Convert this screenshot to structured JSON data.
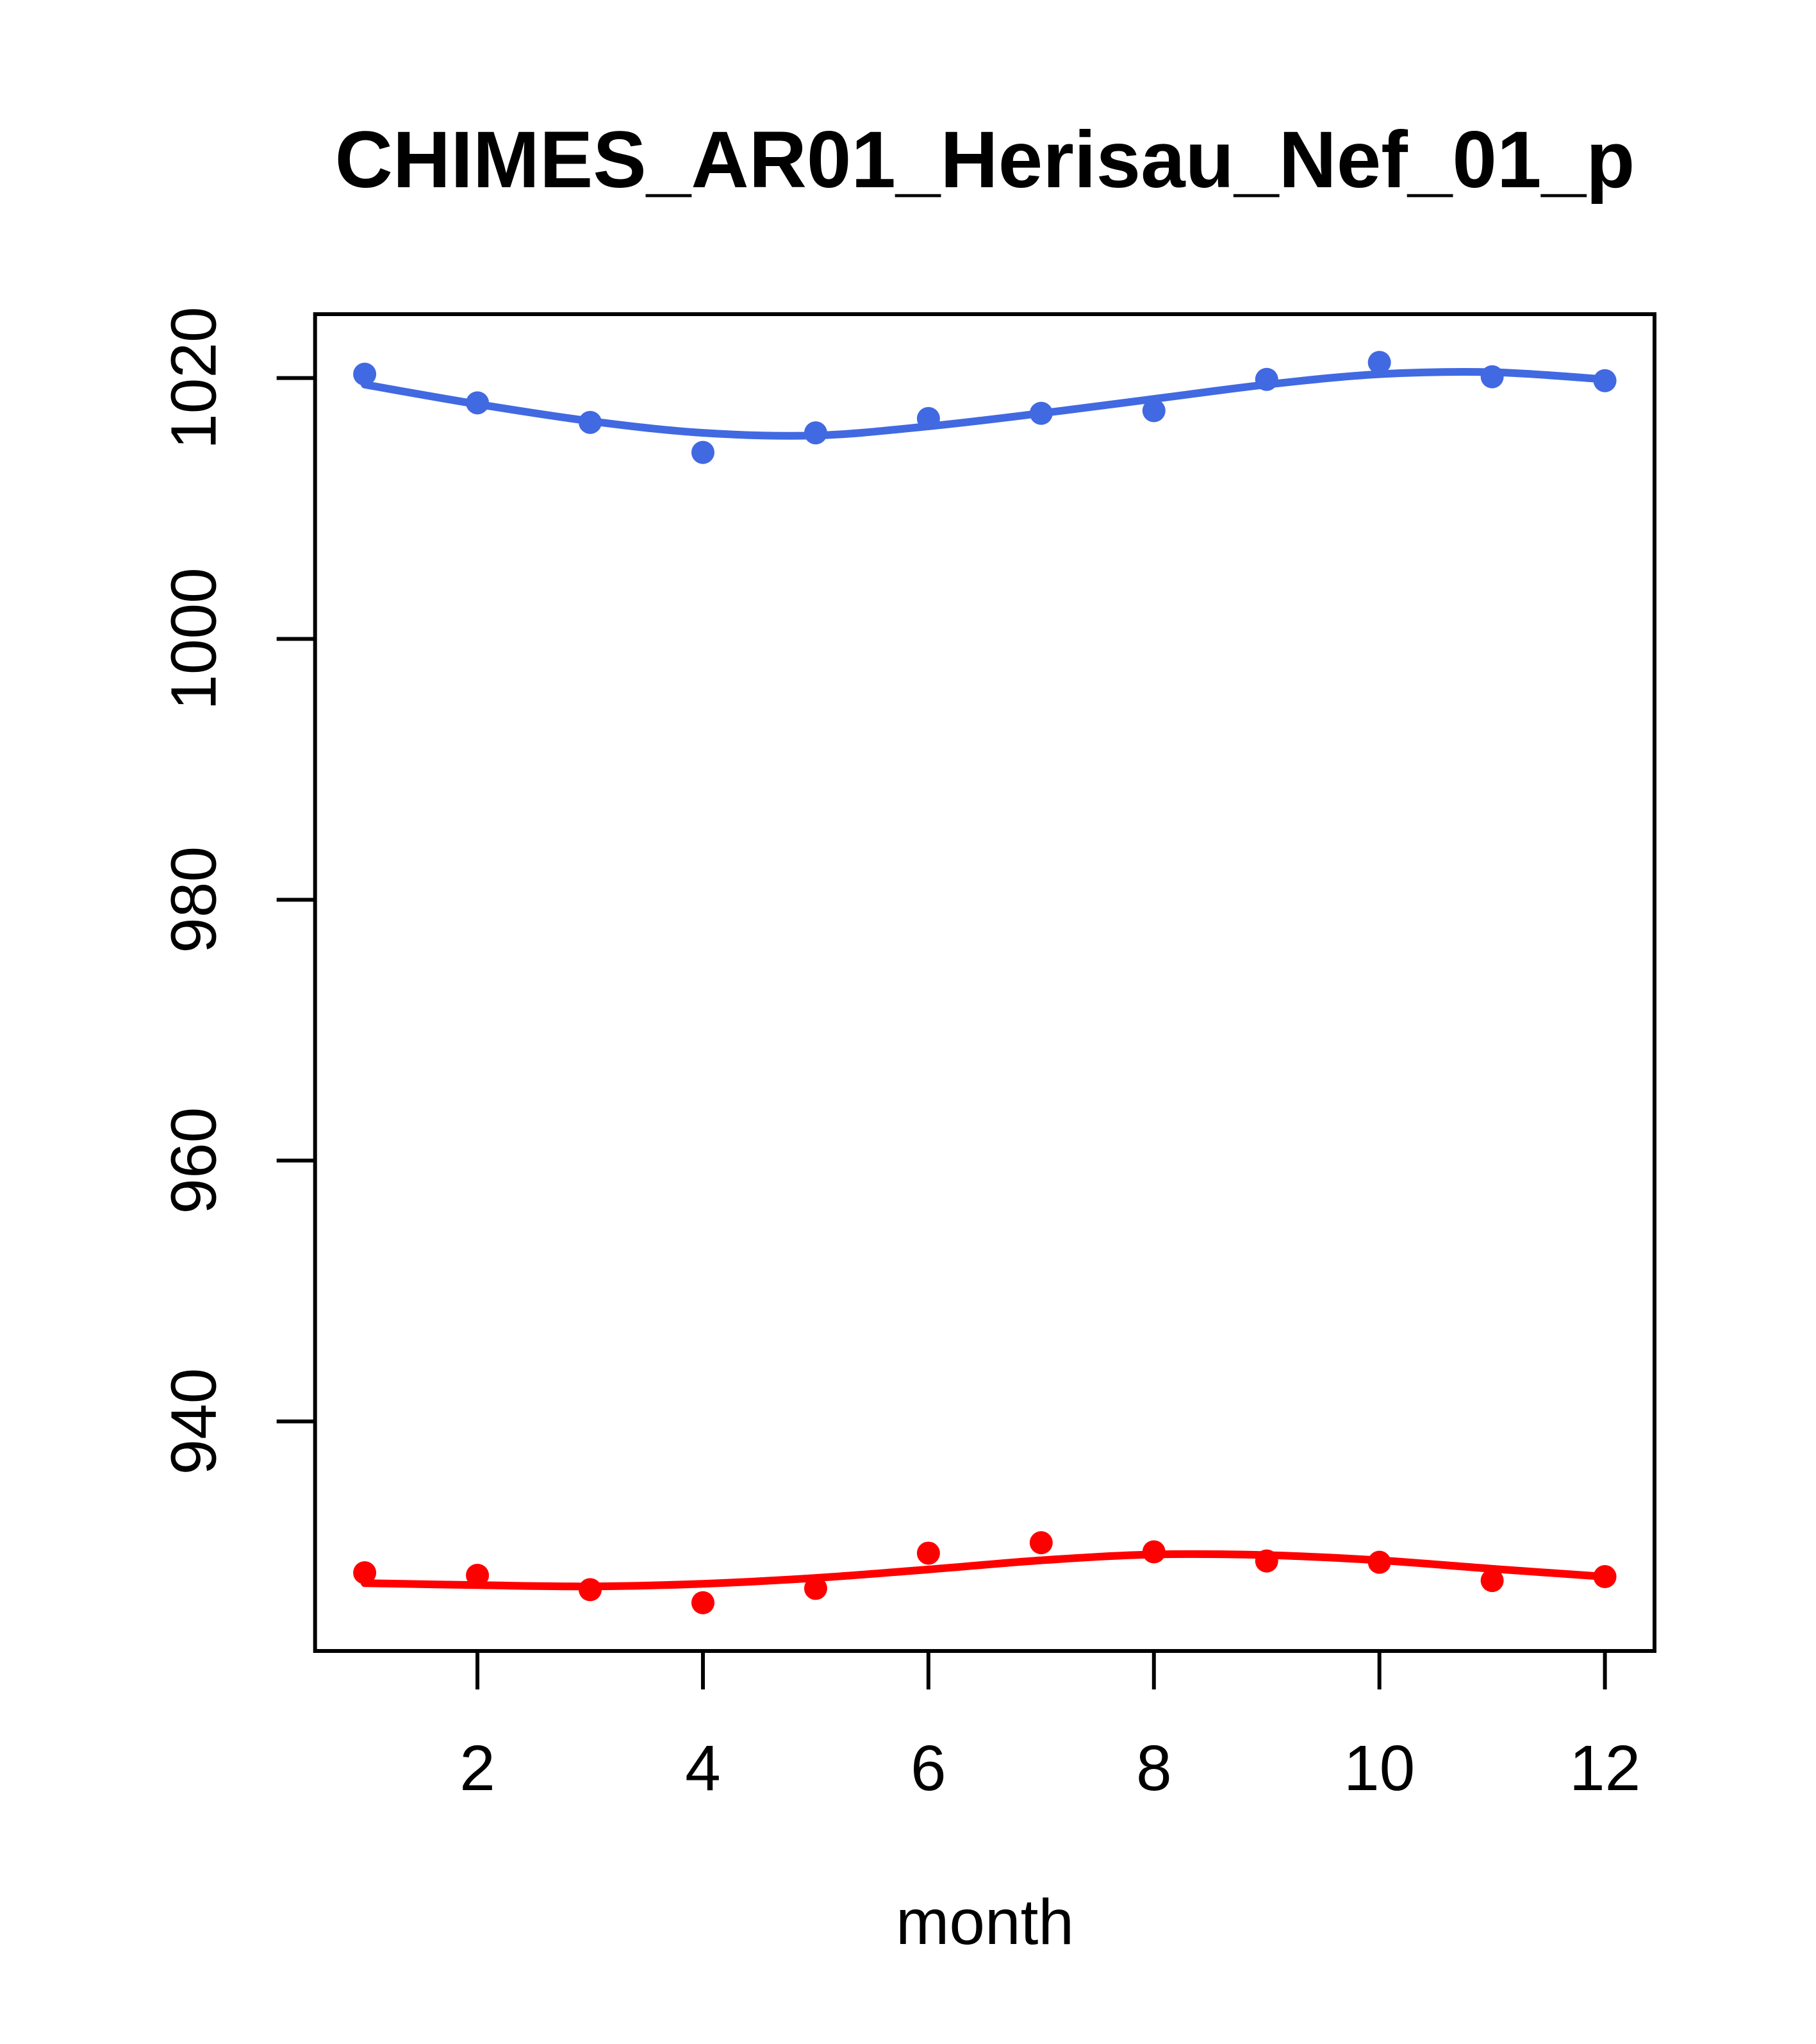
{
  "chart_data": {
    "type": "scatter",
    "title": "CHIMES_AR01_Herisau_Nef_01_p",
    "xlabel": "month",
    "ylabel": "",
    "x": [
      1,
      2,
      3,
      4,
      5,
      6,
      7,
      8,
      9,
      10,
      11,
      12
    ],
    "series": [
      {
        "name": "blue-series",
        "color": "#4169e1",
        "points": [
          1020.3,
          1018.1,
          1016.6,
          1014.3,
          1015.8,
          1016.9,
          1017.3,
          1017.5,
          1019.9,
          1021.2,
          1020.1,
          1019.8
        ],
        "smooth": [
          1019.5,
          1018.0,
          1016.7,
          1015.8,
          1015.6,
          1016.3,
          1017.3,
          1018.4,
          1019.5,
          1020.3,
          1020.45,
          1019.9
        ]
      },
      {
        "name": "red-series",
        "color": "#ff0000",
        "points": [
          928.4,
          928.2,
          927.1,
          926.1,
          927.2,
          929.9,
          930.7,
          930.0,
          929.3,
          929.2,
          927.8,
          928.1
        ],
        "smooth": [
          927.6,
          927.45,
          927.35,
          927.55,
          928.0,
          928.65,
          929.35,
          929.8,
          929.75,
          929.35,
          928.7,
          928.1
        ]
      }
    ],
    "x_ticks": {
      "values": [
        2,
        4,
        6,
        8,
        10,
        12
      ],
      "labels": [
        "2",
        "4",
        "6",
        "8",
        "10",
        "12"
      ]
    },
    "y_ticks": {
      "values": [
        940,
        960,
        980,
        1000,
        1020
      ],
      "labels": [
        "940",
        "960",
        "980",
        "1000",
        "1020"
      ]
    },
    "xlim": [
      0.56,
      12.44
    ],
    "ylim": [
      922.4,
      1024.9
    ],
    "grid": false,
    "legend": "none",
    "background": "#ffffff",
    "axis_color": "#000000"
  }
}
